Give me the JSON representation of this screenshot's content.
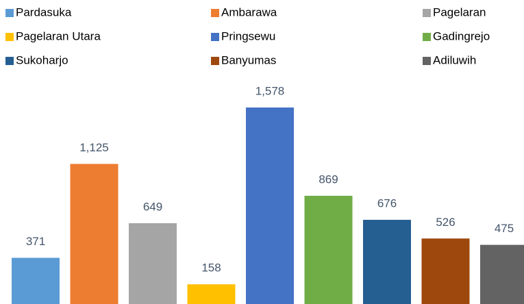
{
  "chart_data": {
    "type": "bar",
    "series": [
      {
        "name": "Pardasuka",
        "color": "#5b9bd5",
        "values": [
          371
        ],
        "value_labels": [
          "371"
        ]
      },
      {
        "name": "Ambarawa",
        "color": "#ed7d31",
        "values": [
          1125
        ],
        "value_labels": [
          "1,125"
        ]
      },
      {
        "name": "Pagelaran",
        "color": "#a5a5a5",
        "values": [
          649
        ],
        "value_labels": [
          "649"
        ]
      },
      {
        "name": "Pagelaran Utara",
        "color": "#ffc000",
        "values": [
          158
        ],
        "value_labels": [
          "158"
        ]
      },
      {
        "name": "Pringsewu",
        "color": "#4472c4",
        "values": [
          1578
        ],
        "value_labels": [
          "1,578"
        ]
      },
      {
        "name": "Gadingrejo",
        "color": "#70ad47",
        "values": [
          869
        ],
        "value_labels": [
          "869"
        ]
      },
      {
        "name": "Sukoharjo",
        "color": "#255e91",
        "values": [
          676
        ],
        "value_labels": [
          "676"
        ]
      },
      {
        "name": "Banyumas",
        "color": "#9e480e",
        "values": [
          526
        ],
        "value_labels": [
          "526"
        ]
      },
      {
        "name": "Adiluwih",
        "color": "#636363",
        "values": [
          475
        ],
        "value_labels": [
          "475"
        ]
      }
    ]
  }
}
